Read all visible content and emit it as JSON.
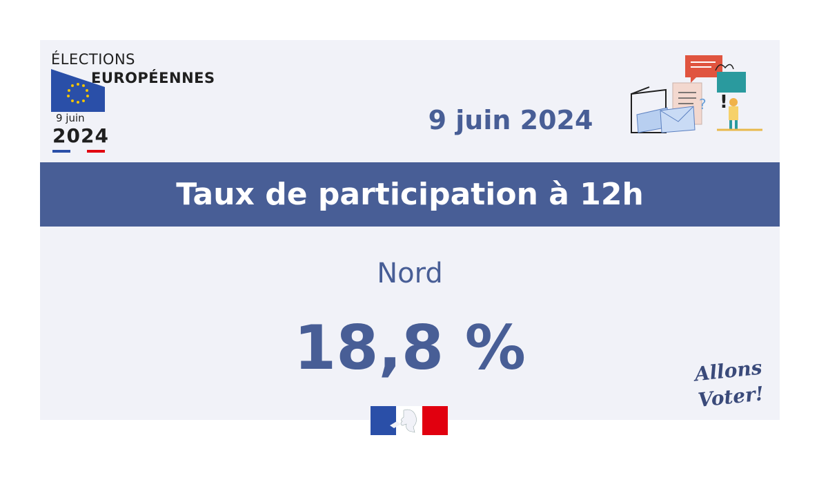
{
  "logo": {
    "line1": "ÉLECTIONS",
    "line2": "EUROPÉENNES",
    "day": "9 juin",
    "year": "2024"
  },
  "date": "9 juin 2024",
  "banner": {
    "title": "Taux de participation à 12h"
  },
  "region": "Nord",
  "rate": "18,8 %",
  "signature": "Allons Voter!",
  "colors": {
    "primary": "#485e96",
    "background": "#f1f2f8",
    "eu_blue": "#2a4fa8",
    "eu_star": "#f4c400",
    "red": "#e1000f"
  },
  "icons": [
    "eu-flag-icon",
    "ballot-box-illustration",
    "marianne-logo",
    "allons-voter-logo"
  ]
}
